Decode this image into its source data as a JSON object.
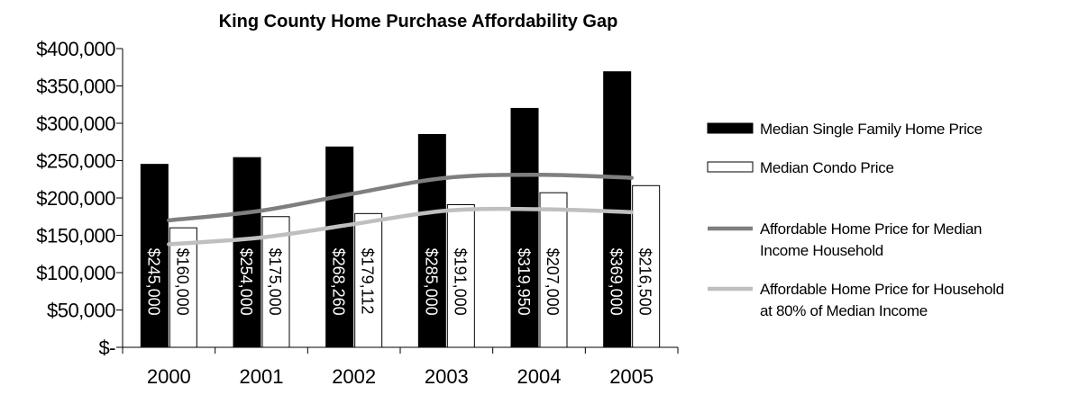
{
  "chart_data": {
    "type": "bar",
    "title": "King County Home Purchase Affordability Gap",
    "categories": [
      "2000",
      "2001",
      "2002",
      "2003",
      "2004",
      "2005"
    ],
    "ylim": [
      0,
      400000
    ],
    "y_ticks": [
      {
        "value": 0,
        "label": "$-"
      },
      {
        "value": 50000,
        "label": "$50,000"
      },
      {
        "value": 100000,
        "label": "$100,000"
      },
      {
        "value": 150000,
        "label": "$150,000"
      },
      {
        "value": 200000,
        "label": "$200,000"
      },
      {
        "value": 250000,
        "label": "$250,000"
      },
      {
        "value": 300000,
        "label": "$300,000"
      },
      {
        "value": 350000,
        "label": "$350,000"
      },
      {
        "value": 400000,
        "label": "$400,000"
      }
    ],
    "grid": false,
    "legend_position": "right",
    "series": [
      {
        "name": "Median Single Family Home Price",
        "kind": "bar",
        "color": "#000000",
        "label_color": "#ffffff",
        "values": [
          245000,
          254000,
          268260,
          285000,
          319950,
          369000
        ],
        "labels": [
          "$245,000",
          "$254,000",
          "$268,260",
          "$285,000",
          "$319,950",
          "$369,000"
        ]
      },
      {
        "name": "Median Condo Price",
        "kind": "bar",
        "color": "#ffffff",
        "label_color": "#000000",
        "values": [
          160000,
          175000,
          179112,
          191000,
          207000,
          216500
        ],
        "labels": [
          "$160,000",
          "$175,000",
          "$179,112",
          "$191,000",
          "$207,000",
          "$216,500"
        ]
      },
      {
        "name_lines": [
          "Affordable Home Price for Median",
          "Income Household"
        ],
        "kind": "line",
        "color": "#7f7f7f",
        "values": [
          170000,
          183000,
          206000,
          227000,
          231000,
          227000
        ]
      },
      {
        "name_lines": [
          "Affordable Home Price for Household",
          "at 80% of Median Income"
        ],
        "kind": "line",
        "color": "#bfbfbf",
        "values": [
          138000,
          147000,
          165000,
          183000,
          185000,
          181000
        ]
      }
    ]
  }
}
